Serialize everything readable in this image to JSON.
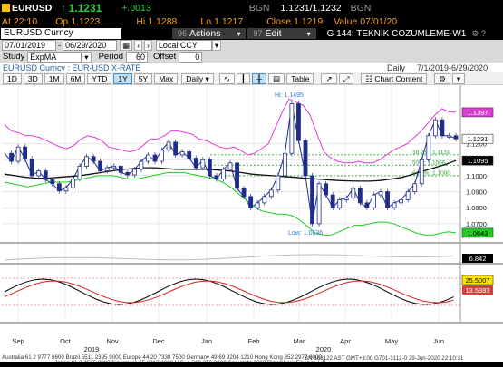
{
  "quote": {
    "ticker": "EURUSD",
    "arrow": "↑",
    "last": "1.1231",
    "change": "+.0013",
    "source": "BGN",
    "bid_ask": "1.1231/1.1232",
    "bid_ask_size": "BGN",
    "at_label": "At",
    "at_time": "22:10",
    "op_label": "Op",
    "op_value": "1.1223",
    "hi_label": "Hi",
    "hi_value": "1.1288",
    "lo_label": "Lo",
    "lo_value": "1.1217",
    "close_label": "Close",
    "close_value": "1.1219",
    "value_label": "Value",
    "value_date": "07/01/20"
  },
  "toolbar": {
    "security": "EURUSD Curncy",
    "actions_num": "96",
    "actions_label": "Actions",
    "edit_num": "97",
    "edit_label": "Edit",
    "page_title": "G 144: TEKNIK COZUMLEME-W1",
    "page_icons": "⚙ ?"
  },
  "settings": {
    "start_date": "07/01/2019",
    "end_date": "06/29/2020",
    "currency": "Local CCY",
    "study_label": "Study",
    "study_value": "ExpMA",
    "period_label": "Period",
    "period_value": "60",
    "offset_label": "Offset",
    "offset_value": "0"
  },
  "subheader": {
    "left": "EURUSD Curncy : EUR-USD X-RATE",
    "freq": "Daily",
    "range": "7/1/2019-6/29/2020"
  },
  "ranges": {
    "items": [
      "1D",
      "3D",
      "1M",
      "6M",
      "YTD",
      "1Y",
      "5Y",
      "Max"
    ],
    "selected": "1Y",
    "interval": "Daily",
    "table": "Table",
    "chart_content": "Chart Content"
  },
  "chart_data": {
    "type": "line",
    "title": "",
    "xlabel": "",
    "ylabel": "",
    "ylim": [
      1.058,
      1.151
    ],
    "yticks": [
      "1.1200",
      "1.1100",
      "1.1000",
      "1.0900",
      "1.0800",
      "1.0700"
    ],
    "months": [
      "Sep",
      "Oct",
      "Nov",
      "Dec",
      "Jan",
      "Feb",
      "Mar",
      "Apr",
      "May",
      "Jun"
    ],
    "years": [
      "2019",
      "2020"
    ],
    "annotations": {
      "high": "Hi: 1.1495",
      "low": "Low: 1.0636"
    },
    "fib_labels": [
      "38.2%: 1.1131",
      "50%: 1.1066",
      "61.8%: 1.1000"
    ],
    "badges": [
      {
        "value": "1.1397",
        "color": "#e23ad6"
      },
      {
        "value": "1.1231",
        "color": "#ffffff"
      },
      {
        "value": "1.1095",
        "color": "#000000"
      },
      {
        "value": "1.0643",
        "color": "#22cc22"
      }
    ],
    "series": [
      {
        "name": "",
        "color": "#1f2d8a",
        "values": [
          1.114,
          1.109,
          1.118,
          1.1105,
          1.1,
          1.103,
          1.0975,
          1.095,
          1.0905,
          1.0925,
          1.098,
          1.106,
          1.112,
          1.109,
          1.103,
          1.105,
          1.106,
          1.102,
          1.1005,
          1.104,
          1.109,
          1.113,
          1.109,
          1.116,
          1.121,
          1.113,
          1.115,
          1.111,
          1.105,
          1.11,
          1.1,
          1.098,
          1.104,
          1.108,
          1.092,
          1.087,
          1.08,
          1.083,
          1.087,
          1.091,
          1.1,
          1.114,
          1.145,
          1.122,
          1.1,
          1.07,
          1.095,
          1.088,
          1.08,
          1.085,
          1.086,
          1.092,
          1.083,
          1.08,
          1.088,
          1.09,
          1.08,
          1.083,
          1.085,
          1.09,
          1.095,
          1.11,
          1.125,
          1.135,
          1.125,
          1.125,
          1.1231
        ]
      },
      {
        "name": "",
        "color": "#e23ad6",
        "values": [
          1.132,
          1.128,
          1.127,
          1.125,
          1.125,
          1.124,
          1.122,
          1.12,
          1.118,
          1.117,
          1.119,
          1.123,
          1.125,
          1.124,
          1.122,
          1.118,
          1.117,
          1.116,
          1.115,
          1.116,
          1.119,
          1.123,
          1.123,
          1.125,
          1.128,
          1.128,
          1.127,
          1.126,
          1.123,
          1.122,
          1.12,
          1.118,
          1.117,
          1.118,
          1.116,
          1.113,
          1.114,
          1.117,
          1.12,
          1.13,
          1.14,
          1.148,
          1.146,
          1.144,
          1.138,
          1.126,
          1.115,
          1.111,
          1.109,
          1.108,
          1.108,
          1.109,
          1.108,
          1.108,
          1.11,
          1.113,
          1.116,
          1.118,
          1.12,
          1.124,
          1.128,
          1.133,
          1.138,
          1.142,
          1.14,
          1.1397
        ]
      },
      {
        "name": "",
        "color": "#22cc22",
        "values": [
          1.096,
          1.095,
          1.094,
          1.093,
          1.094,
          1.095,
          1.096,
          1.096,
          1.096,
          1.097,
          1.098,
          1.099,
          1.1,
          1.1,
          1.1,
          1.099,
          1.098,
          1.098,
          1.099,
          1.1,
          1.101,
          1.102,
          1.102,
          1.102,
          1.101,
          1.1,
          1.099,
          1.098,
          1.096,
          1.093,
          1.089,
          1.085,
          1.081,
          1.078,
          1.077,
          1.076,
          1.076,
          1.075,
          1.072,
          1.068,
          1.064,
          1.063,
          1.063,
          1.065,
          1.067,
          1.069,
          1.069,
          1.07,
          1.071,
          1.071,
          1.07,
          1.068,
          1.066,
          1.064,
          1.063,
          1.063,
          1.064,
          1.065,
          1.0643
        ]
      },
      {
        "name": "",
        "color": "#111111",
        "values": [
          1.101,
          1.1,
          1.099,
          1.0985,
          1.0985,
          1.099,
          1.0995,
          1.1,
          1.101,
          1.102,
          1.103,
          1.104,
          1.1045,
          1.105,
          1.105,
          1.1045,
          1.104,
          1.104,
          1.104,
          1.104,
          1.1035,
          1.103,
          1.102,
          1.101,
          1.1005,
          1.1,
          1.0995,
          1.099,
          1.0985,
          1.098,
          1.0975,
          1.097,
          1.0968,
          1.0966,
          1.0966,
          1.097,
          1.098,
          1.099,
          1.101,
          1.103,
          1.105,
          1.107,
          1.1095
        ]
      }
    ]
  },
  "lower_panes": {
    "rsi_value": "6.842",
    "stoch_values": [
      "25.5007",
      "13.5383"
    ]
  },
  "footer": {
    "line1": "Australia 61 2 9777 8600 Brazil 5511 2395 9000 Europe 44 20 7330 7500 Germany 49 69 9204 1210 Hong Kong 852 2977 6000",
    "line2": "Japan 81 3 4565 8900     Singapore 65 6212 1000     U.S. 1 212 318 2000     Copyright 2020 Bloomberg Finance L.P.",
    "line3": "SN 168122 AST  GMT+3:00 G701-3112-0 29-Jun-2020 22:10:31"
  }
}
